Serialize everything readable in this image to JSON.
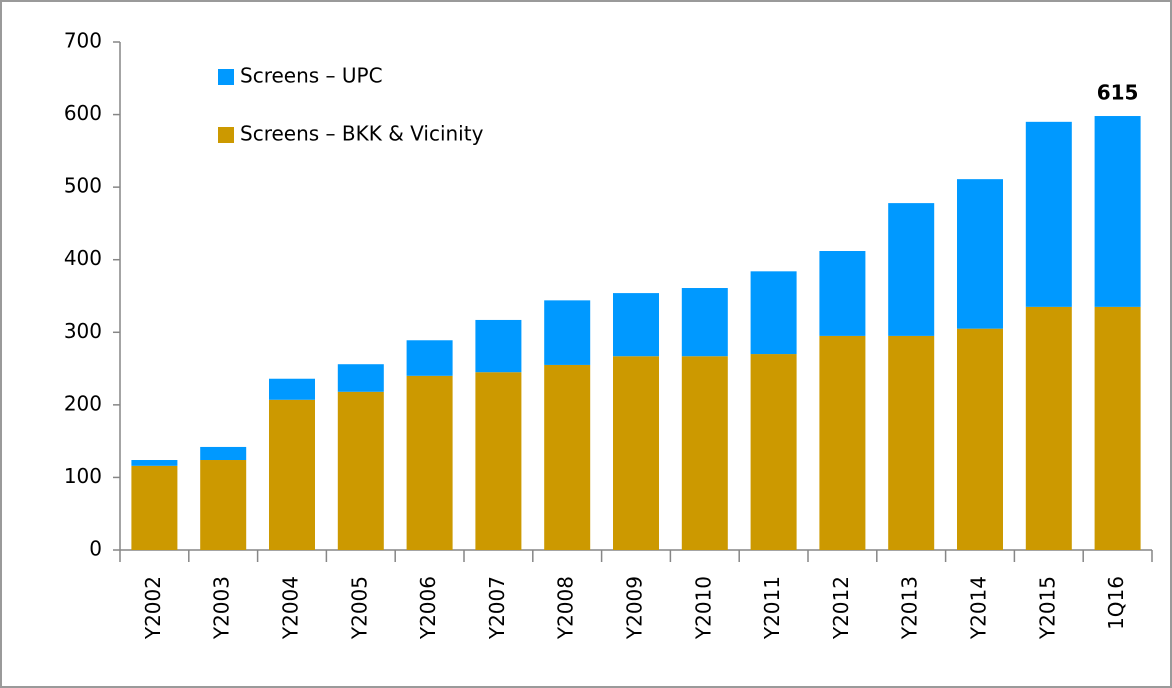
{
  "chart_data": {
    "type": "stacked-bar",
    "categories": [
      "Y2002",
      "Y2003",
      "Y2004",
      "Y2005",
      "Y2006",
      "Y2007",
      "Y2008",
      "Y2009",
      "Y2010",
      "Y2011",
      "Y2012",
      "Y2013",
      "Y2014",
      "Y2015",
      "1Q16"
    ],
    "series": [
      {
        "name": "Screens – BKK & Vicinity",
        "color": "#cc9900",
        "values": [
          116,
          124,
          207,
          218,
          240,
          245,
          255,
          267,
          267,
          270,
          295,
          295,
          305,
          335,
          335
        ]
      },
      {
        "name": "Screens – UPC",
        "color": "#0099ff",
        "values": [
          8,
          18,
          29,
          38,
          49,
          72,
          89,
          87,
          94,
          114,
          117,
          183,
          206,
          255,
          263
        ]
      }
    ],
    "annotation": "615",
    "ylim": [
      0,
      700
    ],
    "yticks": [
      0,
      100,
      200,
      300,
      400,
      500,
      600,
      700
    ]
  }
}
